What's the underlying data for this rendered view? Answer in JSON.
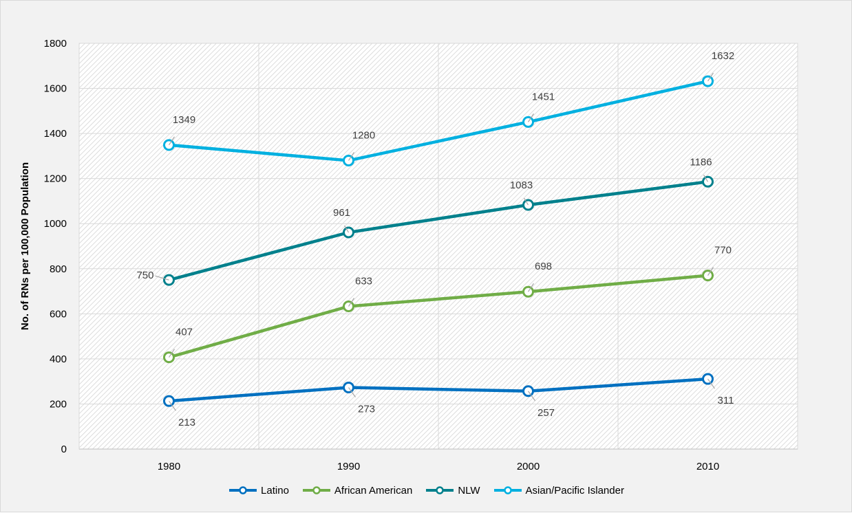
{
  "chart_data": {
    "type": "line",
    "title": "",
    "xlabel": "",
    "ylabel": "No. of RNs per 100,000 Population",
    "categories": [
      "1980",
      "1990",
      "2000",
      "2010"
    ],
    "ylim": [
      0,
      1800
    ],
    "yticks": [
      "0",
      "200",
      "400",
      "600",
      "800",
      "1000",
      "1200",
      "1400",
      "1600",
      "1800"
    ],
    "grid": true,
    "legend_position": "bottom",
    "series": [
      {
        "name": "Latino",
        "color": "#0070C0",
        "values": [
          213,
          273,
          257,
          311
        ],
        "labels": [
          "213",
          "273",
          "257",
          "311"
        ],
        "label_side": "below"
      },
      {
        "name": "African American",
        "color": "#70AD47",
        "values": [
          407,
          633,
          698,
          770
        ],
        "labels": [
          "407",
          "633",
          "698",
          "770"
        ],
        "label_side": "above"
      },
      {
        "name": "NLW",
        "color": "#00808C",
        "values": [
          750,
          961,
          1083,
          1186
        ],
        "labels": [
          "750",
          "961",
          "1083",
          "1186"
        ],
        "label_side": "above-left"
      },
      {
        "name": "Asian/Pacific Islander",
        "color": "#00B0E0",
        "values": [
          1349,
          1280,
          1451,
          1632
        ],
        "labels": [
          "1349",
          "1280",
          "1451",
          "1632"
        ],
        "label_side": "above"
      }
    ]
  }
}
